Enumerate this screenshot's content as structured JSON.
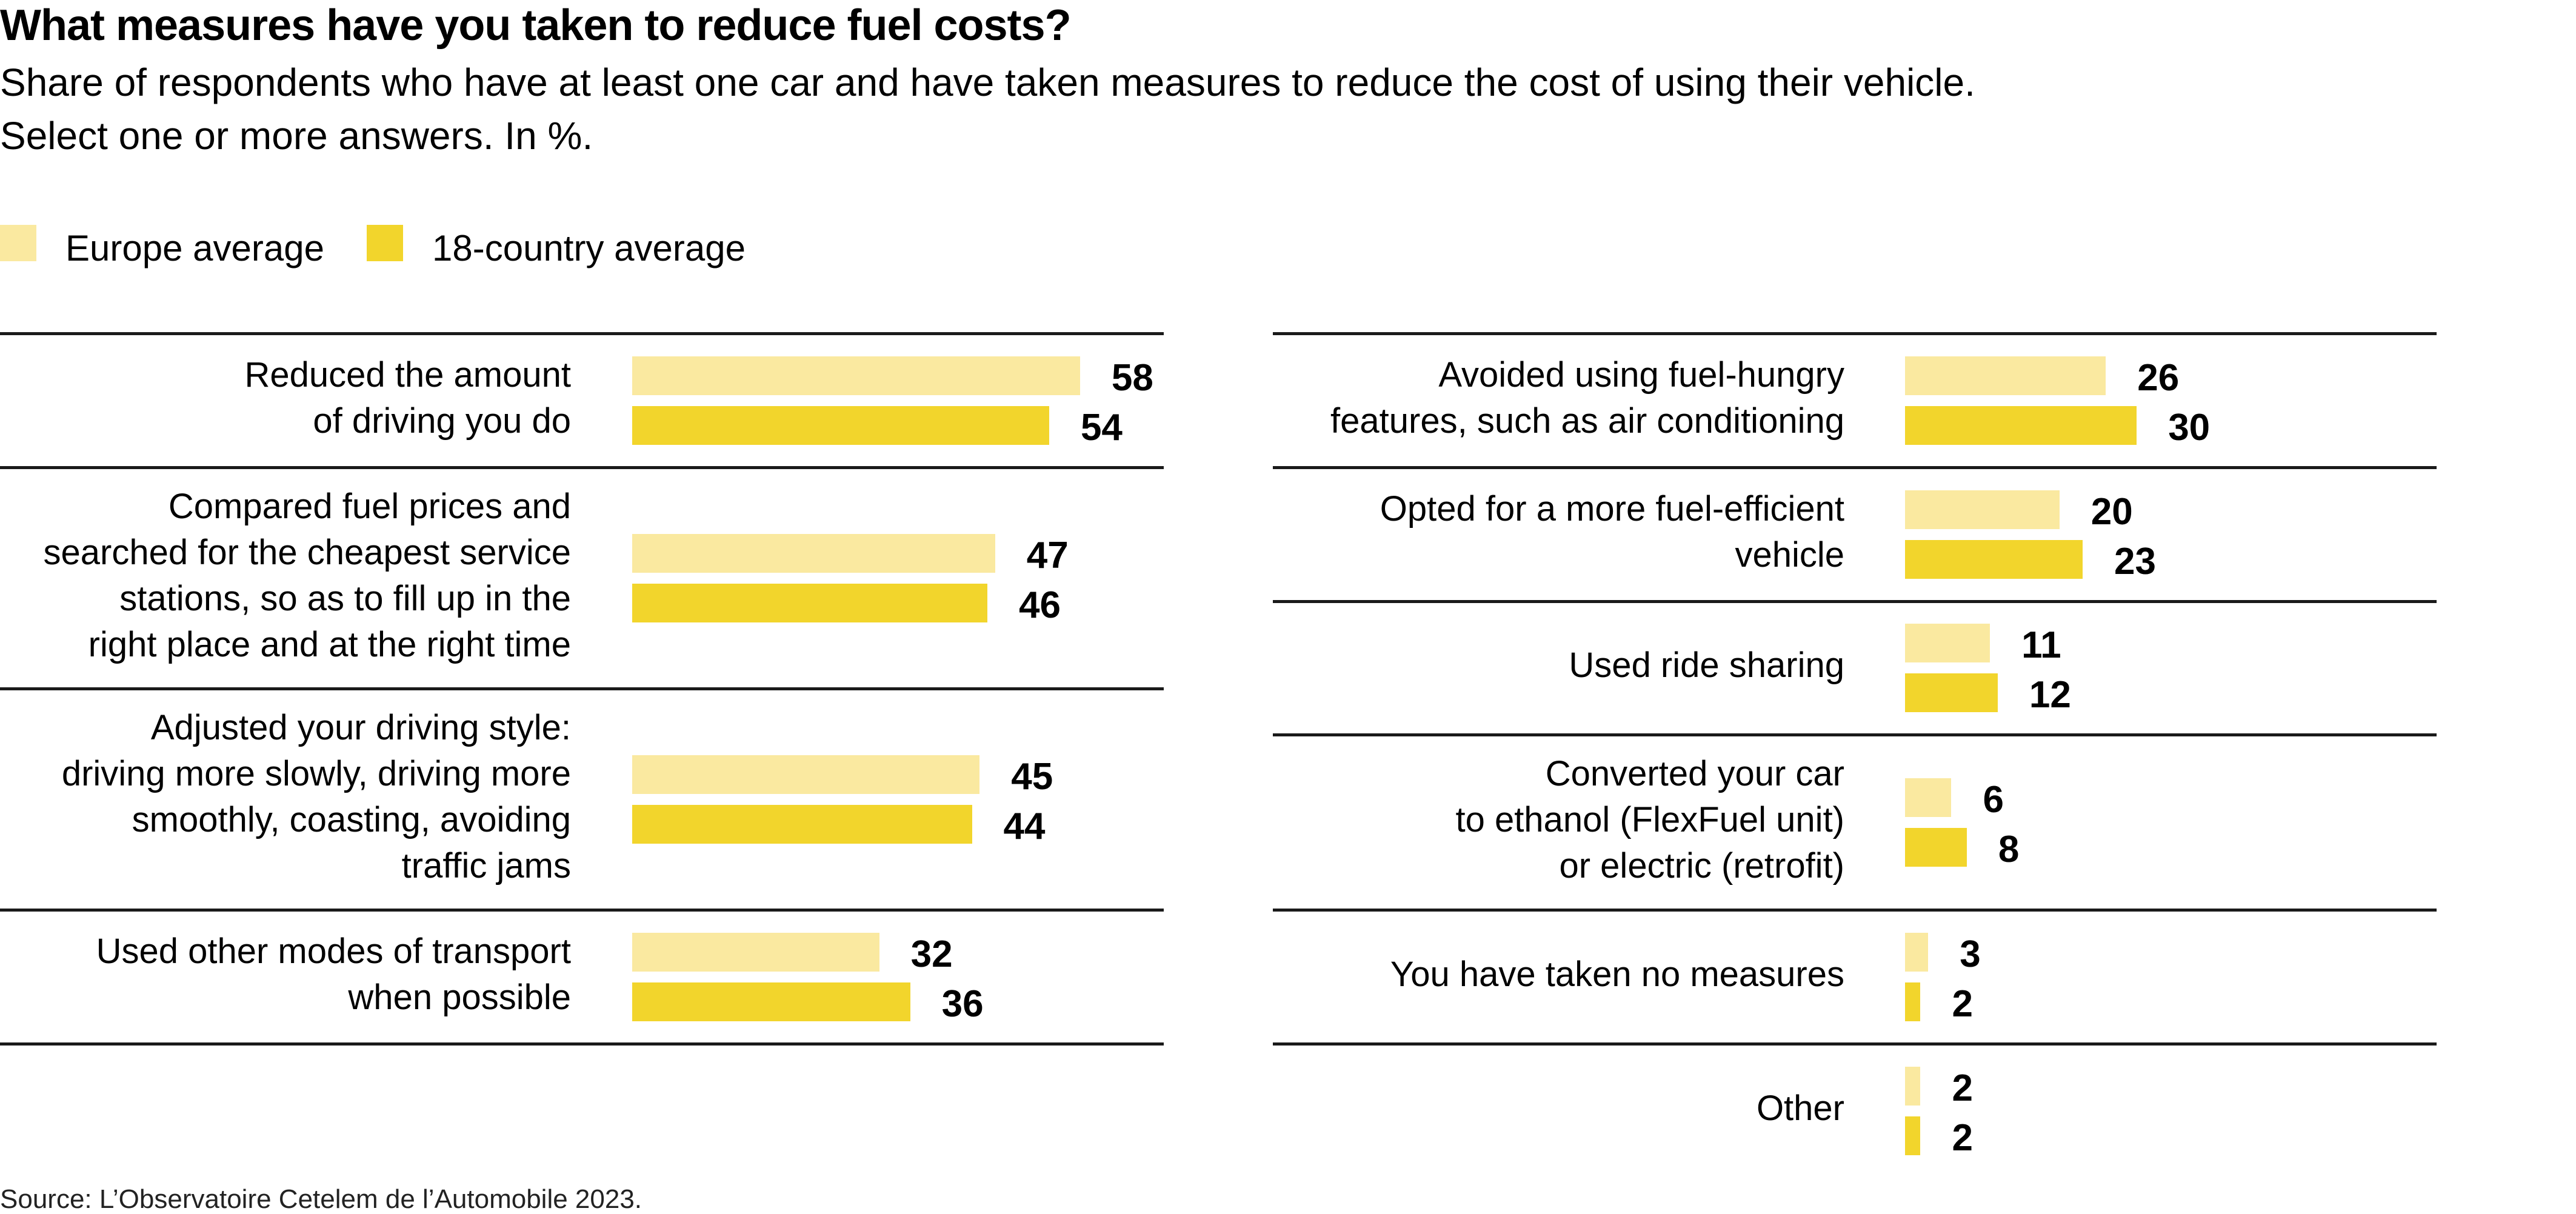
{
  "title": "What measures have you taken to reduce fuel costs?",
  "subtitle": "Share of respondents who have at least one car and have taken measures to reduce the cost of using their vehicle. Select one or more answers. In %.",
  "subtitle_lines": [
    "Share of respondents who have at least one car and have taken measures to reduce the cost of using their vehicle.",
    "Select one or more answers. In %."
  ],
  "source": "Source: L’Observatoire Cetelem de l’Automobile 2023.",
  "colors": {
    "europe": "#fae9a0",
    "country18": "#f2d52c",
    "divider": "#1a1a1a",
    "text": "#000000"
  },
  "chart_data": {
    "type": "bar",
    "orientation": "horizontal",
    "title": "What measures have you taken to reduce fuel costs?",
    "subtitle": "Share of respondents who have at least one car and have taken measures to reduce the cost of using their vehicle. Select one or more answers. In %.",
    "xlabel": "",
    "ylabel": "",
    "unit": "%",
    "xlim": [
      0,
      60
    ],
    "grid": false,
    "legend": {
      "placement": "top-left",
      "entries": [
        "Europe average",
        "18-country average"
      ]
    },
    "series": [
      {
        "name": "Europe average",
        "color": "#fae9a0",
        "values": [
          58,
          47,
          45,
          32,
          26,
          20,
          11,
          6,
          3,
          2
        ]
      },
      {
        "name": "18-country average",
        "color": "#f2d52c",
        "values": [
          54,
          46,
          44,
          36,
          30,
          23,
          12,
          8,
          2,
          2
        ]
      }
    ],
    "categories": [
      "Reduced the amount of driving you do",
      "Compared fuel prices and searched for the cheapest service stations, so as to fill up in the right place and at the right time",
      "Adjusted your driving style: driving more slowly, driving more smoothly, coasting, avoiding traffic jams",
      "Used other modes of transport when possible",
      "Avoided using fuel-hungry features, such as air conditioning",
      "Opted for a more fuel-efficient vehicle",
      "Used ride sharing",
      "Converted your car to ethanol (FlexFuel unit) or electric (retrofit)",
      "You have taken no measures",
      "Other"
    ],
    "panels": [
      {
        "name": "left",
        "rows": [
          {
            "label_lines": "Reduced the amount\nof driving you do",
            "europe": 58,
            "country18": 54
          },
          {
            "label_lines": "Compared fuel prices and\nsearched for the cheapest service\nstations, so as to fill up in the\nright place and at the right time",
            "europe": 47,
            "country18": 46
          },
          {
            "label_lines": "Adjusted your driving style:\ndriving more slowly, driving more\nsmoothly, coasting, avoiding\ntraffic jams",
            "europe": 45,
            "country18": 44
          },
          {
            "label_lines": "Used other modes of transport\nwhen possible",
            "europe": 32,
            "country18": 36
          }
        ]
      },
      {
        "name": "right",
        "rows": [
          {
            "label_lines": "Avoided using fuel-hungry\nfeatures, such as air conditioning",
            "europe": 26,
            "country18": 30
          },
          {
            "label_lines": "Opted for a more fuel-efficient\nvehicle",
            "europe": 20,
            "country18": 23
          },
          {
            "label_lines": "Used ride sharing",
            "europe": 11,
            "country18": 12
          },
          {
            "label_lines": "Converted your car\nto ethanol (FlexFuel unit)\nor electric (retrofit)",
            "europe": 6,
            "country18": 8
          },
          {
            "label_lines": "You have taken no measures",
            "europe": 3,
            "country18": 2
          },
          {
            "label_lines": "Other",
            "europe": 2,
            "country18": 2
          }
        ]
      }
    ]
  }
}
